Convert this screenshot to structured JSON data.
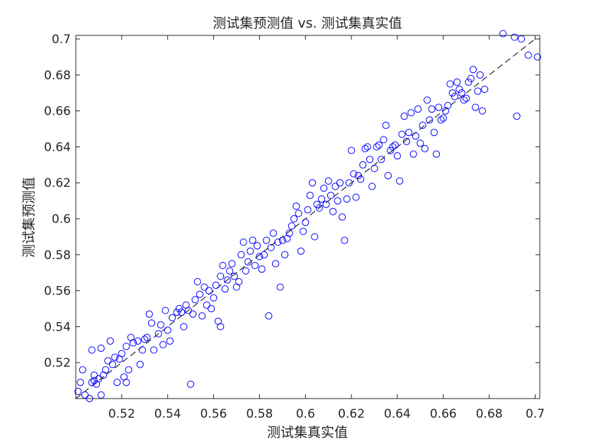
{
  "chart_data": {
    "type": "scatter",
    "title": "测试集预测值 vs. 测试集真实值",
    "xlabel": "测试集真实值",
    "ylabel": "测试集预测值",
    "xlim": [
      0.5,
      0.702
    ],
    "ylim": [
      0.5,
      0.702
    ],
    "xticks": [
      "0.52",
      "0.54",
      "0.56",
      "0.58",
      "0.6",
      "0.62",
      "0.64",
      "0.66",
      "0.68",
      "0.7"
    ],
    "yticks": [
      "0.52",
      "0.54",
      "0.56",
      "0.58",
      "0.6",
      "0.62",
      "0.64",
      "0.66",
      "0.68",
      "0.7"
    ],
    "grid": false,
    "marker": "open-circle",
    "marker_color": "#0000FF",
    "reference_line": {
      "style": "dashed",
      "color": "#000000",
      "from": [
        0.5,
        0.5
      ],
      "to": [
        0.7,
        0.7
      ]
    },
    "points": [
      [
        0.501,
        0.504
      ],
      [
        0.502,
        0.509
      ],
      [
        0.503,
        0.516
      ],
      [
        0.504,
        0.502
      ],
      [
        0.506,
        0.5
      ],
      [
        0.507,
        0.509
      ],
      [
        0.507,
        0.527
      ],
      [
        0.508,
        0.513
      ],
      [
        0.508,
        0.51
      ],
      [
        0.509,
        0.508
      ],
      [
        0.51,
        0.511
      ],
      [
        0.511,
        0.528
      ],
      [
        0.511,
        0.502
      ],
      [
        0.512,
        0.513
      ],
      [
        0.513,
        0.516
      ],
      [
        0.514,
        0.521
      ],
      [
        0.515,
        0.532
      ],
      [
        0.516,
        0.519
      ],
      [
        0.517,
        0.523
      ],
      [
        0.518,
        0.509
      ],
      [
        0.519,
        0.522
      ],
      [
        0.52,
        0.525
      ],
      [
        0.521,
        0.512
      ],
      [
        0.522,
        0.529
      ],
      [
        0.522,
        0.509
      ],
      [
        0.523,
        0.516
      ],
      [
        0.524,
        0.534
      ],
      [
        0.525,
        0.531
      ],
      [
        0.527,
        0.532
      ],
      [
        0.528,
        0.519
      ],
      [
        0.529,
        0.527
      ],
      [
        0.53,
        0.533
      ],
      [
        0.531,
        0.534
      ],
      [
        0.532,
        0.547
      ],
      [
        0.533,
        0.542
      ],
      [
        0.534,
        0.527
      ],
      [
        0.536,
        0.536
      ],
      [
        0.537,
        0.541
      ],
      [
        0.538,
        0.53
      ],
      [
        0.539,
        0.549
      ],
      [
        0.54,
        0.538
      ],
      [
        0.541,
        0.532
      ],
      [
        0.542,
        0.545
      ],
      [
        0.544,
        0.548
      ],
      [
        0.545,
        0.55
      ],
      [
        0.546,
        0.548
      ],
      [
        0.547,
        0.54
      ],
      [
        0.548,
        0.552
      ],
      [
        0.549,
        0.549
      ],
      [
        0.55,
        0.508
      ],
      [
        0.551,
        0.547
      ],
      [
        0.552,
        0.555
      ],
      [
        0.553,
        0.565
      ],
      [
        0.554,
        0.558
      ],
      [
        0.555,
        0.546
      ],
      [
        0.556,
        0.562
      ],
      [
        0.557,
        0.552
      ],
      [
        0.558,
        0.56
      ],
      [
        0.559,
        0.55
      ],
      [
        0.56,
        0.556
      ],
      [
        0.561,
        0.563
      ],
      [
        0.562,
        0.543
      ],
      [
        0.563,
        0.54
      ],
      [
        0.563,
        0.568
      ],
      [
        0.564,
        0.574
      ],
      [
        0.565,
        0.561
      ],
      [
        0.566,
        0.566
      ],
      [
        0.567,
        0.571
      ],
      [
        0.568,
        0.575
      ],
      [
        0.569,
        0.568
      ],
      [
        0.57,
        0.562
      ],
      [
        0.571,
        0.565
      ],
      [
        0.572,
        0.58
      ],
      [
        0.573,
        0.587
      ],
      [
        0.574,
        0.571
      ],
      [
        0.575,
        0.576
      ],
      [
        0.576,
        0.582
      ],
      [
        0.577,
        0.588
      ],
      [
        0.578,
        0.574
      ],
      [
        0.579,
        0.585
      ],
      [
        0.58,
        0.579
      ],
      [
        0.581,
        0.572
      ],
      [
        0.582,
        0.58
      ],
      [
        0.583,
        0.588
      ],
      [
        0.584,
        0.546
      ],
      [
        0.585,
        0.584
      ],
      [
        0.586,
        0.592
      ],
      [
        0.587,
        0.575
      ],
      [
        0.588,
        0.587
      ],
      [
        0.589,
        0.562
      ],
      [
        0.59,
        0.588
      ],
      [
        0.591,
        0.58
      ],
      [
        0.592,
        0.589
      ],
      [
        0.593,
        0.592
      ],
      [
        0.594,
        0.596
      ],
      [
        0.595,
        0.6
      ],
      [
        0.596,
        0.607
      ],
      [
        0.597,
        0.603
      ],
      [
        0.598,
        0.582
      ],
      [
        0.599,
        0.593
      ],
      [
        0.6,
        0.598
      ],
      [
        0.601,
        0.605
      ],
      [
        0.602,
        0.613
      ],
      [
        0.603,
        0.62
      ],
      [
        0.604,
        0.59
      ],
      [
        0.605,
        0.608
      ],
      [
        0.606,
        0.606
      ],
      [
        0.607,
        0.611
      ],
      [
        0.608,
        0.617
      ],
      [
        0.609,
        0.608
      ],
      [
        0.61,
        0.621
      ],
      [
        0.611,
        0.613
      ],
      [
        0.612,
        0.604
      ],
      [
        0.613,
        0.618
      ],
      [
        0.614,
        0.61
      ],
      [
        0.615,
        0.62
      ],
      [
        0.616,
        0.601
      ],
      [
        0.617,
        0.588
      ],
      [
        0.618,
        0.611
      ],
      [
        0.619,
        0.62
      ],
      [
        0.62,
        0.638
      ],
      [
        0.621,
        0.625
      ],
      [
        0.622,
        0.612
      ],
      [
        0.623,
        0.624
      ],
      [
        0.624,
        0.622
      ],
      [
        0.625,
        0.63
      ],
      [
        0.626,
        0.639
      ],
      [
        0.627,
        0.64
      ],
      [
        0.628,
        0.633
      ],
      [
        0.629,
        0.618
      ],
      [
        0.63,
        0.628
      ],
      [
        0.631,
        0.64
      ],
      [
        0.632,
        0.641
      ],
      [
        0.633,
        0.633
      ],
      [
        0.634,
        0.644
      ],
      [
        0.635,
        0.652
      ],
      [
        0.636,
        0.624
      ],
      [
        0.637,
        0.638
      ],
      [
        0.638,
        0.64
      ],
      [
        0.639,
        0.641
      ],
      [
        0.64,
        0.635
      ],
      [
        0.641,
        0.621
      ],
      [
        0.642,
        0.647
      ],
      [
        0.643,
        0.657
      ],
      [
        0.644,
        0.643
      ],
      [
        0.645,
        0.648
      ],
      [
        0.646,
        0.659
      ],
      [
        0.647,
        0.636
      ],
      [
        0.648,
        0.646
      ],
      [
        0.649,
        0.661
      ],
      [
        0.65,
        0.642
      ],
      [
        0.651,
        0.652
      ],
      [
        0.652,
        0.639
      ],
      [
        0.653,
        0.666
      ],
      [
        0.654,
        0.655
      ],
      [
        0.655,
        0.661
      ],
      [
        0.656,
        0.648
      ],
      [
        0.657,
        0.636
      ],
      [
        0.658,
        0.662
      ],
      [
        0.659,
        0.655
      ],
      [
        0.66,
        0.656
      ],
      [
        0.661,
        0.66
      ],
      [
        0.662,
        0.663
      ],
      [
        0.663,
        0.675
      ],
      [
        0.664,
        0.67
      ],
      [
        0.665,
        0.668
      ],
      [
        0.666,
        0.676
      ],
      [
        0.667,
        0.672
      ],
      [
        0.668,
        0.67
      ],
      [
        0.669,
        0.666
      ],
      [
        0.67,
        0.667
      ],
      [
        0.671,
        0.676
      ],
      [
        0.672,
        0.678
      ],
      [
        0.673,
        0.683
      ],
      [
        0.674,
        0.662
      ],
      [
        0.675,
        0.671
      ],
      [
        0.676,
        0.68
      ],
      [
        0.677,
        0.66
      ],
      [
        0.678,
        0.672
      ],
      [
        0.686,
        0.703
      ],
      [
        0.691,
        0.701
      ],
      [
        0.692,
        0.657
      ],
      [
        0.694,
        0.7
      ],
      [
        0.697,
        0.691
      ],
      [
        0.701,
        0.69
      ]
    ]
  }
}
